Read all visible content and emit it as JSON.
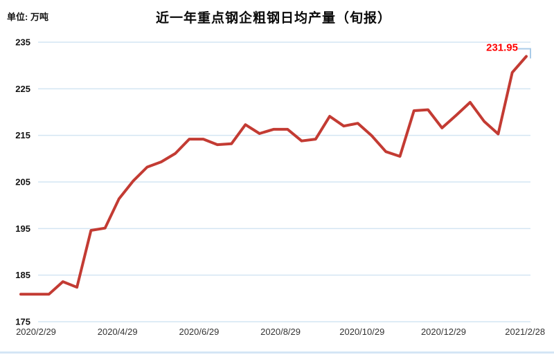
{
  "header": {
    "unit_label": "单位: 万吨",
    "title": "近一年重点钢企粗钢日均产量（旬报）"
  },
  "chart_data": {
    "type": "line",
    "title": "近一年重点钢企粗钢日均产量（旬报）",
    "unit": "万吨",
    "values": [
      180.9,
      180.9,
      180.9,
      183.6,
      182.4,
      194.6,
      195.1,
      201.4,
      205.2,
      208.2,
      209.3,
      211.1,
      214.2,
      214.2,
      213.0,
      213.2,
      217.3,
      215.4,
      216.3,
      216.3,
      213.8,
      214.2,
      219.1,
      217.0,
      217.6,
      214.9,
      211.5,
      210.5,
      220.3,
      220.5,
      216.6,
      219.3,
      222.1,
      218.0,
      215.3,
      228.5,
      231.95
    ],
    "x_tick_labels": [
      "2020/2/29",
      "2020/4/29",
      "2020/6/29",
      "2020/8/29",
      "2020/10/29",
      "2020/12/29",
      "2021/2/28"
    ],
    "x_tick_indices": [
      0,
      6,
      12,
      18,
      24,
      30,
      36
    ],
    "y_ticks": [
      175,
      185,
      195,
      205,
      215,
      225,
      235
    ],
    "ylim": [
      175,
      235
    ],
    "grid": "horizontal",
    "legend": "none",
    "annotation": {
      "text": "231.95",
      "point_index": 36
    },
    "colors": {
      "line": "#c33b33",
      "annotation": "#fe0000",
      "gridline": "#d3e5f3",
      "y_label": "#111111",
      "x_label": "#333333",
      "last_point_marker": "#a9cbe8",
      "bottom_strip": "#d4e6f5"
    }
  }
}
